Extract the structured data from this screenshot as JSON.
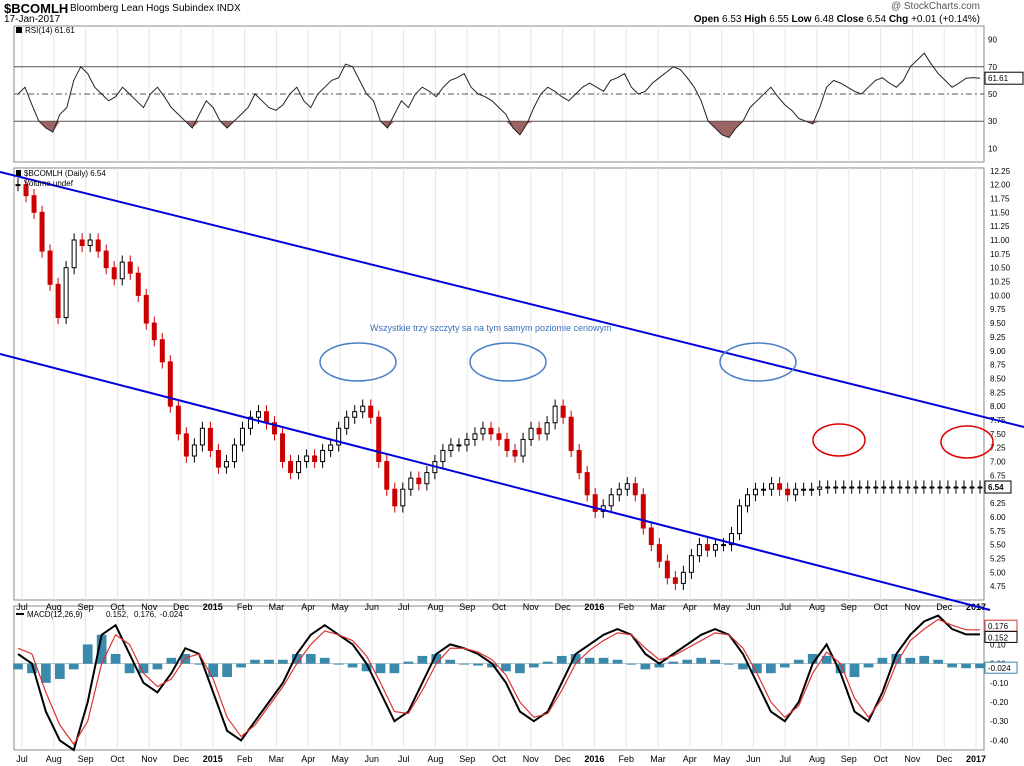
{
  "header": {
    "ticker": "$BCOMLH",
    "description": "Bloomberg Lean Hogs Subindex",
    "exchange": "INDX",
    "date": "17-Jan-2017",
    "copyright": "@ StockCharts.com",
    "open_label": "Open",
    "open": "6.53",
    "high_label": "High",
    "high": "6.55",
    "low_label": "Low",
    "low": "6.48",
    "close_label": "Close",
    "close": "6.54",
    "chg_label": "Chg",
    "chg": "+0.01 (+0.14%)"
  },
  "colors": {
    "up": "#000000",
    "down": "#cc0000",
    "channel": "#0000dd",
    "blue_circle": "#4a7fc8",
    "red_circle": "#dd0000",
    "macd_line": "#000000",
    "signal_line": "#dd3333",
    "histogram": "#3a8aad",
    "rsi_fill": "#8b4a4a"
  },
  "chart_data": [
    {
      "type": "line",
      "panel": "RSI",
      "title": "RSI(14) 61.61",
      "ylim": [
        0,
        100
      ],
      "y_ticks": [
        10,
        30,
        50,
        70,
        90
      ],
      "reference_lines": [
        30,
        50,
        70
      ],
      "last_value_label": "61.61",
      "x": [
        0,
        7,
        14,
        21,
        28,
        35,
        42,
        49,
        56,
        63,
        70,
        77,
        84,
        91,
        98,
        105,
        112,
        119,
        126,
        133,
        140,
        147,
        154,
        161,
        168,
        175,
        182,
        189,
        196,
        203,
        210,
        217,
        224,
        231,
        238,
        245,
        252,
        259,
        266,
        273,
        280,
        287,
        294,
        301,
        308,
        315,
        322,
        329,
        336,
        343,
        350,
        357,
        364,
        371,
        378,
        385,
        392,
        399,
        406,
        413,
        420,
        427,
        434,
        441,
        448,
        455,
        462,
        469,
        476,
        483,
        490,
        497,
        504,
        511,
        518,
        525,
        532,
        539,
        546,
        553,
        560,
        567,
        574,
        581,
        588,
        595,
        602,
        609,
        616,
        623,
        630,
        637,
        644,
        651,
        658,
        665,
        672,
        679,
        686,
        693,
        700,
        707,
        714,
        721,
        728,
        735,
        742,
        749,
        756,
        763,
        770,
        777,
        784,
        791,
        798,
        805,
        812,
        819,
        826,
        833,
        840,
        847,
        854,
        861,
        868,
        875,
        882,
        889,
        896,
        903,
        910,
        917,
        924,
        931,
        938,
        945,
        952,
        959,
        966
      ],
      "values": [
        50,
        55,
        42,
        30,
        25,
        22,
        35,
        40,
        60,
        70,
        65,
        55,
        50,
        45,
        48,
        55,
        50,
        45,
        40,
        50,
        55,
        48,
        40,
        35,
        30,
        25,
        35,
        45,
        40,
        30,
        25,
        30,
        35,
        40,
        50,
        45,
        40,
        38,
        42,
        50,
        55,
        45,
        40,
        50,
        55,
        60,
        62,
        72,
        70,
        60,
        50,
        45,
        30,
        25,
        35,
        45,
        40,
        50,
        55,
        52,
        48,
        55,
        60,
        62,
        65,
        55,
        50,
        48,
        45,
        40,
        35,
        25,
        20,
        28,
        40,
        50,
        55,
        52,
        48,
        45,
        50,
        55,
        58,
        55,
        52,
        60,
        62,
        65,
        55,
        50,
        52,
        58,
        62,
        66,
        70,
        68,
        62,
        55,
        45,
        30,
        25,
        20,
        18,
        25,
        30,
        40,
        45,
        50,
        55,
        48,
        42,
        38,
        32,
        30,
        28,
        40,
        55,
        60,
        58,
        55,
        52,
        50,
        55,
        60,
        62,
        58,
        55,
        60,
        70,
        75,
        80,
        72,
        65,
        60,
        55,
        58,
        61.61,
        62,
        61.61
      ]
    },
    {
      "type": "candlestick",
      "panel": "Price",
      "title": "$BCOMLH (Daily) 6.54",
      "legend": [
        "$BCOMLH (Daily) 6.54",
        "Volume undef"
      ],
      "ylim": [
        4.5,
        12.3
      ],
      "y_ticks": [
        4.75,
        5.0,
        5.25,
        5.5,
        5.75,
        6.0,
        6.25,
        6.5,
        6.75,
        7.0,
        7.25,
        7.5,
        7.75,
        8.0,
        8.25,
        8.5,
        8.75,
        9.0,
        9.25,
        9.5,
        9.75,
        10.0,
        10.25,
        10.5,
        10.75,
        11.0,
        11.25,
        11.5,
        11.75,
        12.0,
        12.25
      ],
      "last_value_label": "6.54",
      "annotation": "Wszystkie trzy szczyty sa na tym samym poziomie cenowym",
      "x_ticks": [
        "Jul",
        "Aug",
        "Sep",
        "Oct",
        "Nov",
        "Dec",
        "2015",
        "Feb",
        "Mar",
        "Apr",
        "May",
        "Jun",
        "Jul",
        "Aug",
        "Sep",
        "Oct",
        "Nov",
        "Dec",
        "2016",
        "Feb",
        "Mar",
        "Apr",
        "May",
        "Jun",
        "Jul",
        "Aug",
        "Sep",
        "Oct",
        "Nov",
        "Dec",
        "2017"
      ],
      "x": [
        0,
        8,
        16,
        24,
        32,
        40,
        48,
        56,
        64,
        72,
        80,
        88,
        96,
        104,
        112,
        120,
        128,
        136,
        144,
        152,
        160,
        168,
        176,
        184,
        192,
        200,
        208,
        216,
        224,
        232,
        240,
        248,
        256,
        264,
        272,
        280,
        288,
        296,
        304,
        312,
        320,
        328,
        336,
        344,
        352,
        360,
        368,
        376,
        384,
        392,
        400,
        408,
        416,
        424,
        432,
        440,
        448,
        456,
        464,
        472,
        480,
        488,
        496,
        504,
        512,
        520,
        528,
        536,
        544,
        552,
        560,
        568,
        576,
        584,
        592,
        600,
        608,
        616,
        624,
        632,
        640,
        648,
        656,
        664,
        672,
        680,
        688,
        696,
        704,
        712,
        720,
        728,
        736,
        744,
        752,
        760,
        768,
        776,
        784,
        792,
        800,
        808,
        816,
        824,
        832,
        840,
        848,
        856,
        864,
        872,
        880,
        888,
        896,
        904,
        912,
        920,
        928,
        936,
        944,
        952,
        960
      ],
      "close": [
        12.0,
        11.8,
        11.5,
        10.8,
        10.2,
        9.6,
        10.5,
        11.0,
        10.9,
        11.0,
        10.8,
        10.5,
        10.3,
        10.6,
        10.4,
        10.0,
        9.5,
        9.2,
        8.8,
        8.0,
        7.5,
        7.1,
        7.3,
        7.6,
        7.2,
        6.9,
        7.0,
        7.3,
        7.6,
        7.8,
        7.9,
        7.7,
        7.5,
        7.0,
        6.8,
        7.0,
        7.1,
        7.0,
        7.2,
        7.3,
        7.6,
        7.8,
        7.9,
        8.0,
        7.8,
        7.0,
        6.5,
        6.2,
        6.5,
        6.7,
        6.6,
        6.8,
        7.0,
        7.2,
        7.3,
        7.3,
        7.4,
        7.5,
        7.6,
        7.5,
        7.4,
        7.2,
        7.1,
        7.4,
        7.6,
        7.5,
        7.7,
        8.0,
        7.8,
        7.2,
        6.8,
        6.4,
        6.1,
        6.2,
        6.4,
        6.5,
        6.6,
        6.4,
        5.8,
        5.5,
        5.2,
        4.9,
        4.8,
        5.0,
        5.3,
        5.5,
        5.4,
        5.5,
        5.5,
        5.7,
        6.2,
        6.4,
        6.5,
        6.5,
        6.6,
        6.5,
        6.4,
        6.5,
        6.5,
        6.5,
        6.54,
        6.54,
        6.54,
        6.54,
        6.54,
        6.54,
        6.54,
        6.54,
        6.54,
        6.54,
        6.54,
        6.54,
        6.54,
        6.54,
        6.54,
        6.54,
        6.54,
        6.54,
        6.54,
        6.54,
        6.54
      ]
    },
    {
      "type": "line",
      "panel": "MACD",
      "title": "MACD(12,26,9) 0.152, 0.176, -0.024",
      "series_labels": [
        "MACD(12,26,9)",
        "0.152,",
        "0.176,",
        "-0.024"
      ],
      "ylim": [
        -0.45,
        0.3
      ],
      "y_ticks": [
        -0.4,
        -0.3,
        -0.2,
        -0.1,
        0.0,
        0.1,
        0.2
      ],
      "last_value_labels": [
        "0.176",
        "0.152",
        "-0.024"
      ],
      "x": [
        0,
        14,
        28,
        42,
        56,
        70,
        84,
        98,
        112,
        126,
        140,
        154,
        168,
        182,
        196,
        210,
        224,
        238,
        252,
        266,
        280,
        294,
        308,
        322,
        336,
        350,
        364,
        378,
        392,
        406,
        420,
        434,
        448,
        462,
        476,
        490,
        504,
        518,
        532,
        546,
        560,
        574,
        588,
        602,
        616,
        630,
        644,
        658,
        672,
        686,
        700,
        714,
        728,
        742,
        756,
        770,
        784,
        798,
        812,
        826,
        840,
        854,
        868,
        882,
        896,
        910,
        924,
        938,
        952,
        966
      ],
      "series": [
        {
          "name": "MACD",
          "values": [
            0.05,
            0.0,
            -0.25,
            -0.4,
            -0.45,
            -0.2,
            0.15,
            0.2,
            0.05,
            -0.1,
            -0.15,
            -0.05,
            0.08,
            0.05,
            -0.15,
            -0.35,
            -0.4,
            -0.3,
            -0.2,
            -0.1,
            0.05,
            0.15,
            0.2,
            0.15,
            0.1,
            0.0,
            -0.15,
            -0.3,
            -0.25,
            -0.1,
            0.05,
            0.1,
            0.08,
            0.05,
            0.0,
            -0.1,
            -0.25,
            -0.3,
            -0.25,
            -0.1,
            0.05,
            0.1,
            0.15,
            0.18,
            0.15,
            0.05,
            0.0,
            0.05,
            0.1,
            0.15,
            0.18,
            0.15,
            0.05,
            -0.1,
            -0.25,
            -0.3,
            -0.2,
            0.0,
            0.1,
            -0.05,
            -0.25,
            -0.3,
            -0.15,
            0.05,
            0.15,
            0.22,
            0.25,
            0.18,
            0.152,
            0.152
          ]
        },
        {
          "name": "Signal",
          "values": [
            0.08,
            0.05,
            -0.15,
            -0.32,
            -0.42,
            -0.3,
            0.0,
            0.15,
            0.1,
            -0.05,
            -0.12,
            -0.08,
            0.03,
            0.05,
            -0.08,
            -0.28,
            -0.38,
            -0.32,
            -0.22,
            -0.12,
            0.0,
            0.1,
            0.17,
            0.15,
            0.12,
            0.04,
            -0.1,
            -0.25,
            -0.26,
            -0.14,
            0.0,
            0.08,
            0.08,
            0.06,
            0.02,
            -0.06,
            -0.2,
            -0.28,
            -0.26,
            -0.14,
            0.0,
            0.07,
            0.12,
            0.16,
            0.15,
            0.08,
            0.02,
            0.04,
            0.08,
            0.12,
            0.16,
            0.15,
            0.08,
            -0.05,
            -0.2,
            -0.28,
            -0.22,
            -0.05,
            0.06,
            0.0,
            -0.18,
            -0.28,
            -0.18,
            0.0,
            0.12,
            0.18,
            0.23,
            0.2,
            0.176,
            0.176
          ]
        },
        {
          "name": "Histogram",
          "values": [
            -0.03,
            -0.05,
            -0.1,
            -0.08,
            -0.03,
            0.1,
            0.15,
            0.05,
            -0.05,
            -0.05,
            -0.03,
            0.03,
            0.05,
            0.0,
            -0.07,
            -0.07,
            -0.02,
            0.02,
            0.02,
            0.02,
            0.05,
            0.05,
            0.03,
            0.0,
            -0.02,
            -0.04,
            -0.05,
            -0.05,
            0.01,
            0.04,
            0.05,
            0.02,
            0.0,
            -0.01,
            -0.02,
            -0.04,
            -0.05,
            -0.02,
            0.01,
            0.04,
            0.05,
            0.03,
            0.03,
            0.02,
            0.0,
            -0.03,
            -0.02,
            0.01,
            0.02,
            0.03,
            0.02,
            0.0,
            -0.03,
            -0.05,
            -0.05,
            -0.02,
            0.02,
            0.05,
            0.04,
            -0.05,
            -0.07,
            -0.02,
            0.03,
            0.05,
            0.03,
            0.04,
            0.02,
            -0.02,
            -0.024,
            -0.024
          ]
        }
      ]
    }
  ]
}
